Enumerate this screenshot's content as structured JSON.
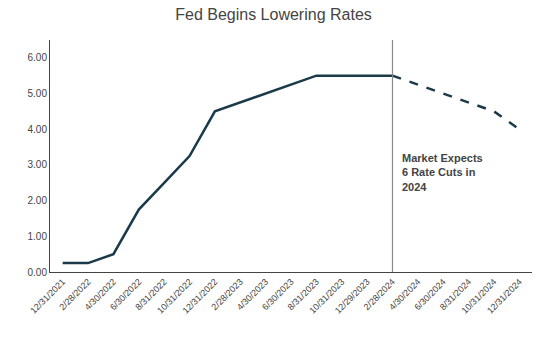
{
  "chart_data": {
    "type": "line",
    "title": "Fed Begins Lowering Rates",
    "categories": [
      "12/31/2021",
      "2/28/2022",
      "4/30/2022",
      "6/30/2022",
      "8/31/2022",
      "10/31/2022",
      "12/31/2022",
      "2/28/2023",
      "4/30/2023",
      "6/30/2023",
      "8/31/2023",
      "10/31/2023",
      "12/29/2023",
      "2/28/2024",
      "4/30/2024",
      "6/30/2024",
      "8/31/2024",
      "10/31/2024",
      "12/31/2024"
    ],
    "series": [
      {
        "color": "#1a3a4a",
        "line_style": "solid",
        "values": [
          0.25,
          0.25,
          0.5,
          1.75,
          2.5,
          3.25,
          4.5,
          4.75,
          5.0,
          5.25,
          5.5,
          5.5,
          5.5,
          5.5,
          null,
          null,
          null,
          null,
          null
        ]
      },
      {
        "color": "#1a3a4a",
        "line_style": "dashed",
        "values": [
          null,
          null,
          null,
          null,
          null,
          null,
          null,
          null,
          null,
          null,
          null,
          null,
          null,
          5.5,
          5.25,
          5.0,
          4.75,
          4.5,
          4.0
        ]
      }
    ],
    "annotations": [
      {
        "text": "Market Expects\n6 Rate Cuts in\n2024",
        "x": "2/28/2024"
      }
    ],
    "ylim": [
      0.0,
      6.5
    ],
    "yticks": [
      {
        "value": 0.0,
        "label": "0.00"
      },
      {
        "value": 1.0,
        "label": "1.00"
      },
      {
        "value": 2.0,
        "label": "2.00"
      },
      {
        "value": 3.0,
        "label": "3.00"
      },
      {
        "value": 4.0,
        "label": "4.00"
      },
      {
        "value": 5.0,
        "label": "5.00"
      },
      {
        "value": 6.0,
        "label": "6.00"
      }
    ],
    "grid": false
  }
}
